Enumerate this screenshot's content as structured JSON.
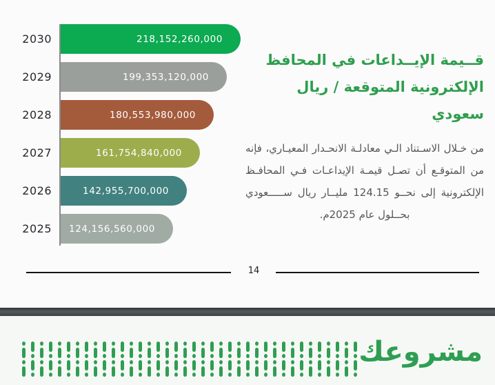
{
  "page": {
    "background": "#fbfbfb",
    "page_number": "14"
  },
  "chart_data": {
    "type": "bar",
    "orientation": "horizontal",
    "title": "قيمة الإيداعات في المحافظ الإلكترونية المتوقعة / ريال سعودي",
    "categories": [
      "2030",
      "2029",
      "2028",
      "2027",
      "2026",
      "2025"
    ],
    "values": [
      218152260000,
      199353120000,
      180553980000,
      161754840000,
      142955700000,
      124156560000
    ],
    "value_labels": [
      "218,152,260,000",
      "199,353,120,000",
      "180,553,980,000",
      "161,754,840,000",
      "142,955,700,000",
      "124,156,560,000"
    ],
    "bar_colors": [
      "#0caa51",
      "#9b9f9b",
      "#a45b3c",
      "#9dad4c",
      "#41817f",
      "#a0aba3"
    ],
    "value_label_color": "#ffffff",
    "axis_color": "#8b8b8b",
    "grid": false,
    "legend": false,
    "xlim": [
      0,
      218152260000
    ]
  },
  "panel": {
    "title_line1": "قــيمة الإيــداعات  في المحافظ",
    "title_line2": "الإلكترونية المتوقعة / ريال سعودي",
    "title_color": "#2f9e4e",
    "body": "من خـلال الاسـتناد الـي معادلـة الانحـدار المعيـاري، فإنه من المتوقـع أن تصـل قيمـة الإيداعـات فـي المحافـظ الإلكترونية إلى نحــو 124.15 مليــار ريال ســـــعودي بحــلول عام 2025م."
  },
  "footer": {
    "logo_text": "مشروعك",
    "brand_green": "#2e9e52",
    "pattern_columns": 38
  }
}
